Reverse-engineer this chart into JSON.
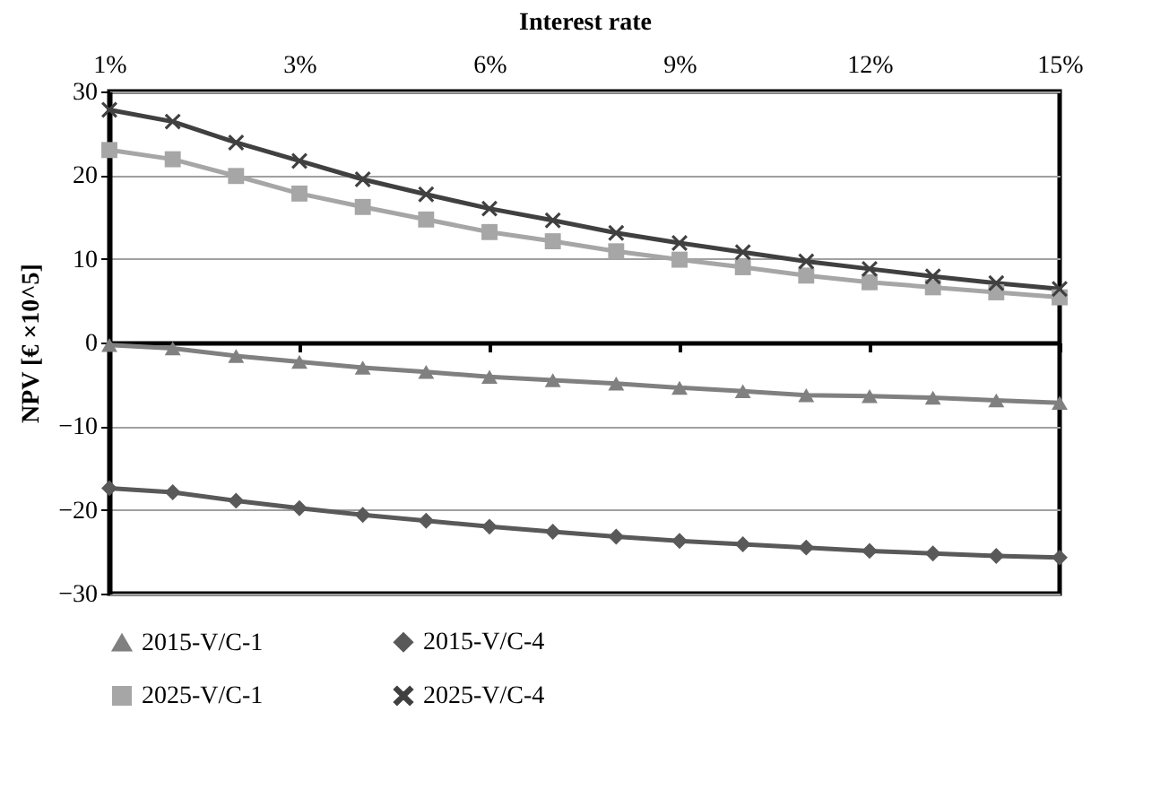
{
  "chart_data": {
    "type": "line",
    "xlabel": "Interest rate",
    "ylabel": "NPV [€ ×10^5]",
    "categories": [
      "1%",
      null,
      null,
      "3%",
      null,
      null,
      "6%",
      null,
      null,
      "9%",
      null,
      null,
      "12%",
      null,
      null,
      "15%"
    ],
    "ylim": [
      -30,
      30
    ],
    "yticks": [
      -30,
      -20,
      -10,
      0,
      10,
      20,
      30
    ],
    "grid": "y",
    "legend": "bottom",
    "series": [
      {
        "name": "2015-V/C-1",
        "color": "#808080",
        "marker": "triangle",
        "values": [
          -0.3,
          -0.7,
          -1.6,
          -2.3,
          -3.0,
          -3.5,
          -4.1,
          -4.5,
          -4.9,
          -5.4,
          -5.8,
          -6.3,
          -6.4,
          -6.6,
          -6.9,
          -7.2
        ]
      },
      {
        "name": "2015-V/C-4",
        "color": "#595959",
        "marker": "diamond",
        "values": [
          -17.4,
          -17.9,
          -18.9,
          -19.8,
          -20.6,
          -21.3,
          -22.0,
          -22.6,
          -23.2,
          -23.7,
          -24.1,
          -24.5,
          -24.9,
          -25.2,
          -25.5,
          -25.7
        ]
      },
      {
        "name": "2025-V/C-1",
        "color": "#a6a6a6",
        "marker": "square",
        "values": [
          23.0,
          21.9,
          19.9,
          17.8,
          16.2,
          14.7,
          13.2,
          12.1,
          10.9,
          9.9,
          9.0,
          8.0,
          7.2,
          6.6,
          6.0,
          5.4
        ]
      },
      {
        "name": "2025-V/C-4",
        "color": "#404040",
        "marker": "cross",
        "values": [
          27.8,
          26.4,
          23.9,
          21.7,
          19.5,
          17.7,
          16.0,
          14.6,
          13.1,
          11.9,
          10.8,
          9.7,
          8.8,
          7.9,
          7.1,
          6.4
        ]
      }
    ]
  }
}
